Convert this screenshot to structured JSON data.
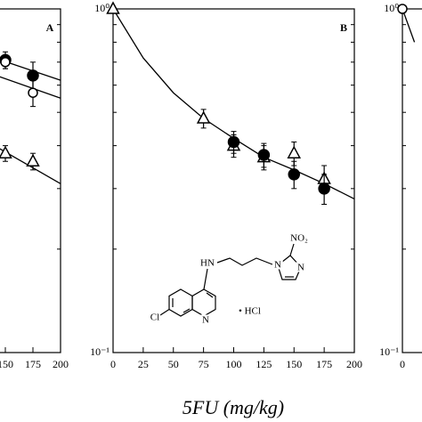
{
  "chart_data": [
    {
      "type": "line",
      "panel_label": "A",
      "log_y": true,
      "xlim": [
        0,
        200
      ],
      "xticks": [
        150,
        175,
        200
      ],
      "ylim": [
        0.1,
        1
      ],
      "series": [
        {
          "marker": "none",
          "color": "#000000",
          "x": [
            140,
            200
          ],
          "values": [
            0.72,
            0.62
          ]
        },
        {
          "marker": "none",
          "color": "#000000",
          "x": [
            130,
            200
          ],
          "values": [
            0.66,
            0.55
          ]
        },
        {
          "marker": "none",
          "color": "#000000",
          "x": [
            140,
            200
          ],
          "values": [
            0.4,
            0.31
          ]
        },
        {
          "marker": "filled-circle",
          "color": "#000000",
          "x": [
            150,
            175
          ],
          "values": [
            0.71,
            0.64
          ],
          "errors": [
            0.04,
            0.06
          ]
        },
        {
          "marker": "open-circle",
          "color": "#000000",
          "x": [
            150,
            175
          ],
          "values": [
            0.7,
            0.57
          ],
          "errors": [
            0.03,
            0.05
          ]
        },
        {
          "marker": "open-triangle",
          "color": "#000000",
          "x": [
            150,
            175
          ],
          "values": [
            0.38,
            0.36
          ],
          "errors": [
            0.02,
            0.02
          ]
        }
      ]
    },
    {
      "type": "line",
      "panel_label": "B",
      "log_y": true,
      "xlim": [
        0,
        200
      ],
      "xticks": [
        0,
        25,
        50,
        75,
        100,
        125,
        150,
        175,
        200
      ],
      "ylim": [
        0.1,
        1
      ],
      "yticks": [
        {
          "value": 1,
          "label": "10⁰"
        },
        {
          "value": 0.1,
          "label": "10⁻¹"
        }
      ],
      "series": [
        {
          "marker": "none",
          "color": "#000000",
          "x": [
            0,
            25,
            50,
            75,
            100,
            125,
            150,
            175,
            200
          ],
          "values": [
            1,
            0.72,
            0.57,
            0.48,
            0.42,
            0.37,
            0.34,
            0.31,
            0.28
          ]
        },
        {
          "marker": "open-triangle",
          "color": "#000000",
          "x": [
            0,
            75,
            100,
            125,
            150,
            175
          ],
          "values": [
            1,
            0.48,
            0.4,
            0.37,
            0.38,
            0.32
          ],
          "errors": [
            0.01,
            0.03,
            0.03,
            0.03,
            0.03,
            0.03
          ]
        },
        {
          "marker": "filled-circle",
          "color": "#000000",
          "x": [
            100,
            125,
            150,
            175
          ],
          "values": [
            0.41,
            0.376,
            0.33,
            0.3
          ],
          "errors": [
            0.03,
            0.03,
            0.03,
            0.03
          ]
        }
      ]
    },
    {
      "type": "line",
      "panel_label": null,
      "log_y": true,
      "xlim": [
        0,
        200
      ],
      "xticks": [
        0
      ],
      "ylim": [
        0.1,
        1
      ],
      "yticks": [
        {
          "value": 1,
          "label": "10⁰"
        },
        {
          "value": 0.1,
          "label": "10⁻¹"
        }
      ],
      "series": [
        {
          "marker": "none",
          "color": "#000000",
          "x": [
            0,
            10
          ],
          "values": [
            1,
            0.8
          ]
        },
        {
          "marker": "open-circle",
          "color": "#000000",
          "x": [
            0
          ],
          "values": [
            1
          ]
        }
      ]
    }
  ],
  "x_axis_label": "5FU (mg/kg)",
  "structure_labels": {
    "amine": "HN",
    "nitro": "NO₂",
    "imidazole_n1": "N",
    "imidazole_n3": "N",
    "quinoline_n": "N",
    "chloro": "Cl",
    "salt": "• HCl"
  }
}
